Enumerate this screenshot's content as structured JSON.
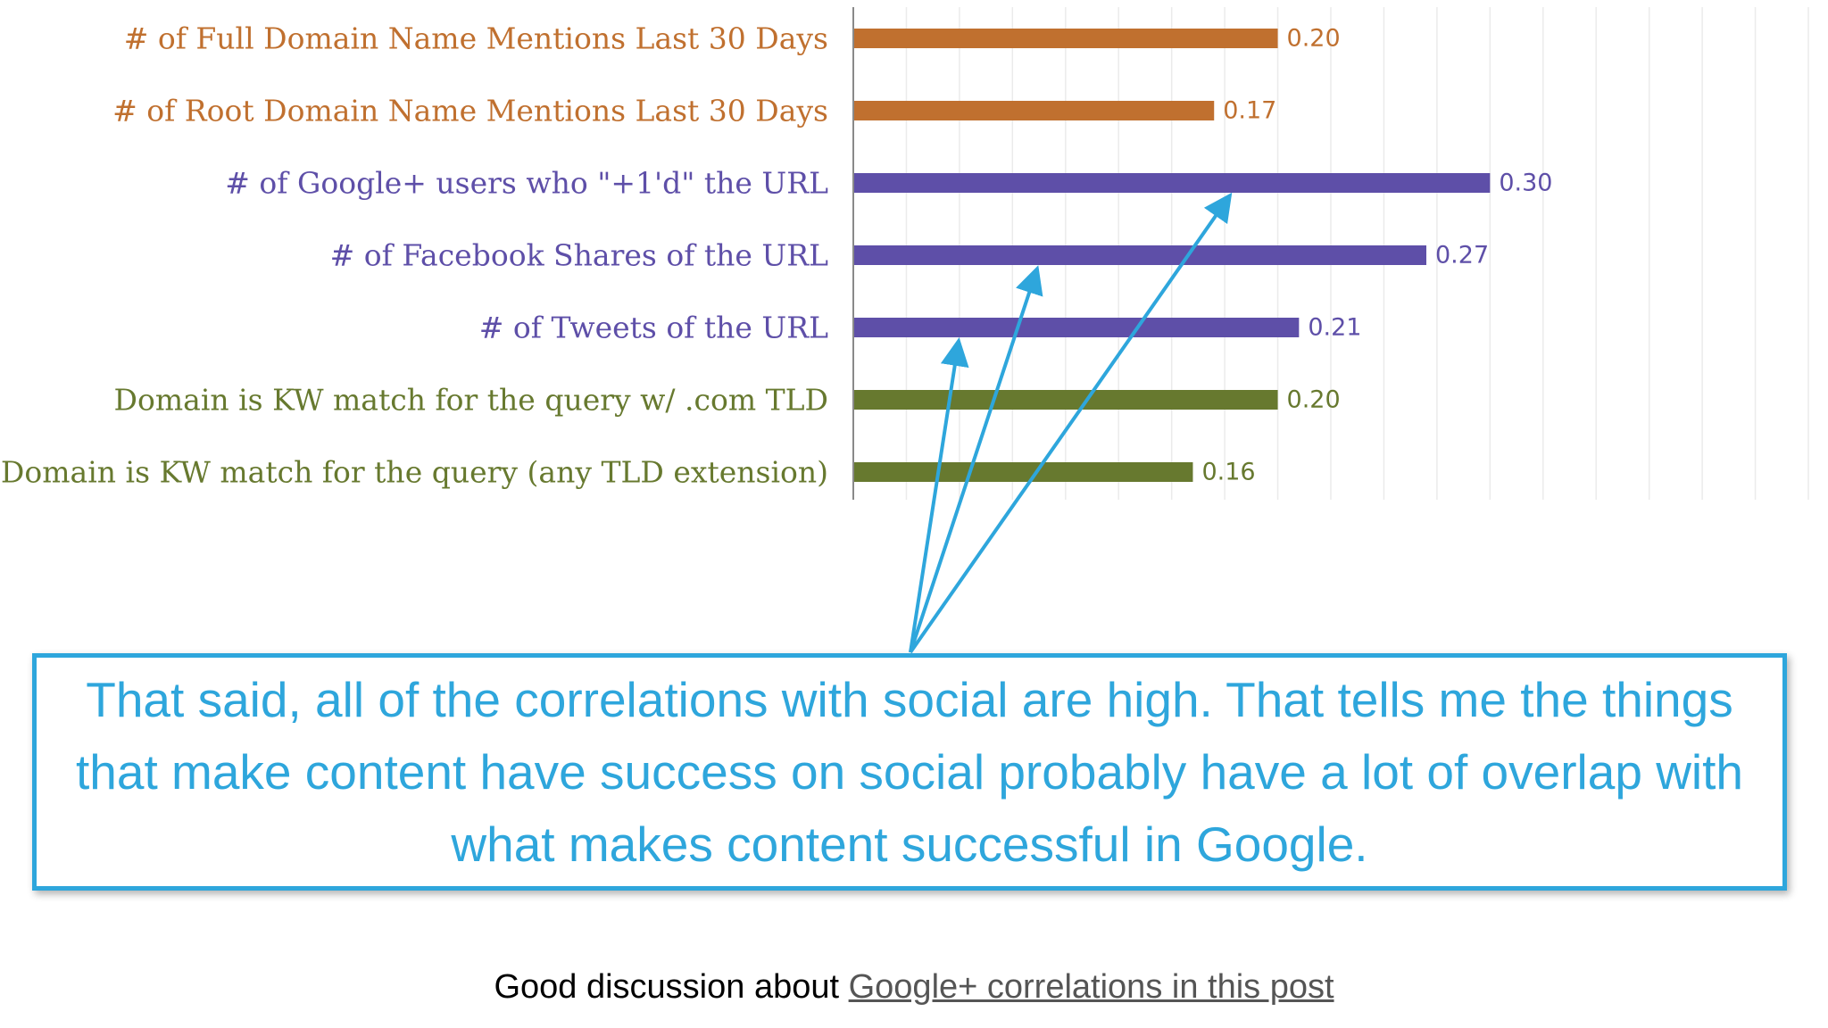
{
  "chart_data": {
    "type": "bar",
    "orientation": "horizontal",
    "categories": [
      "# of Full Domain Name Mentions Last 30 Days",
      "# of Root Domain Name Mentions Last 30 Days",
      "# of Google+ users who \"+1'd\" the URL",
      "# of Facebook Shares of the URL",
      "# of Tweets of the URL",
      "Domain is KW match for the query w/ .com TLD",
      "Domain is KW match for the query (any TLD extension)"
    ],
    "values": [
      0.2,
      0.17,
      0.3,
      0.27,
      0.21,
      0.2,
      0.16
    ],
    "value_labels": [
      "0.20",
      "0.17",
      "0.30",
      "0.27",
      "0.21",
      "0.20",
      "0.16"
    ],
    "colors": [
      "#c0702f",
      "#c0702f",
      "#5e4fa8",
      "#5e4fa8",
      "#5e4fa8",
      "#67792f",
      "#67792f"
    ],
    "label_colors": [
      "#c0702f",
      "#c0702f",
      "#5e4fa8",
      "#5e4fa8",
      "#5e4fa8",
      "#67792f",
      "#67792f"
    ],
    "xlim": [
      0,
      0.45
    ],
    "grid": true,
    "arrow_targets": [
      "# of Tweets of the URL",
      "# of Facebook Shares of the URL",
      "# of Google+ users who \"+1'd\" the URL"
    ],
    "arrow_color": "#2ea6dc"
  },
  "callout": {
    "text": "That said, all of the correlations with social are high. That tells me the things that make content have success on social probably have a lot of overlap with what makes content successful in Google."
  },
  "footer": {
    "prefix": "Good discussion about ",
    "link_text": "Google+ correlations in this post"
  }
}
